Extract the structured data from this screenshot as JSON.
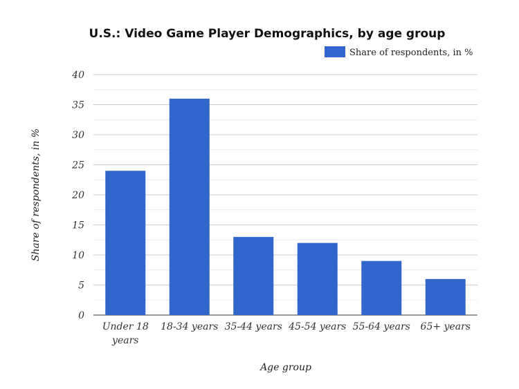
{
  "chart_data": {
    "type": "bar",
    "title": "U.S.: Video Game Player Demographics, by age group",
    "xlabel": "Age group",
    "ylabel": "Share of respondents, in %",
    "categories": [
      "Under 18 years",
      "18-34 years",
      "35-44 years",
      "45-54 years",
      "55-64 years",
      "65+ years"
    ],
    "series": [
      {
        "name": "Share of respondents, in %",
        "values": [
          24,
          36,
          13,
          12,
          9,
          6
        ],
        "color": "#3366cc"
      }
    ],
    "ylim": [
      0,
      40
    ],
    "yticks": [
      "0",
      "5",
      "10",
      "15",
      "20",
      "25",
      "30",
      "35",
      "40"
    ],
    "grid": true,
    "legend": "top-right"
  }
}
